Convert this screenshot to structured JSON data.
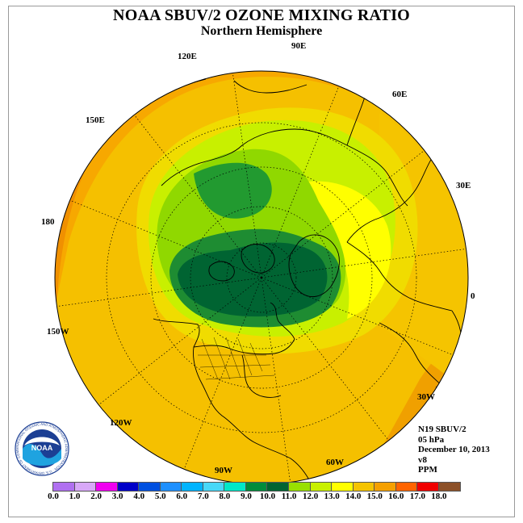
{
  "header": {
    "title": "NOAA SBUV/2 OZONE MIXING RATIO",
    "subtitle": "Northern Hemisphere"
  },
  "map": {
    "projection": "north polar stereographic",
    "longitude_labels": {
      "lon_90e": "90E",
      "lon_60e": "60E",
      "lon_30e": "30E",
      "lon_0": "0",
      "lon_30w": "30W",
      "lon_60w": "60W",
      "lon_90w": "90W",
      "lon_120w": "120W",
      "lon_150w": "150W",
      "lon_180": "180",
      "lon_150e": "150E",
      "lon_120e": "120E"
    },
    "colors": {
      "ocean_orange": "#f7a800",
      "dark_orange": "#f08c00",
      "gold": "#f5c400",
      "yellow": "#ffff00",
      "yellow_green": "#c8f000",
      "light_green": "#90dc00",
      "green": "#1e8c32",
      "dark_green": "#006432"
    }
  },
  "info": {
    "satellite": "N19 SBUV/2",
    "level": "05 hPa",
    "date": "December 10, 2013",
    "version": "v8",
    "units": "PPM"
  },
  "logo": {
    "text": "NOAA",
    "ring_text": "NATIONAL OCEANIC AND ATMOSPHERIC ADMINISTRATION · U.S. DEPARTMENT OF COMMERCE"
  },
  "colorbar": {
    "colors": [
      "#b070f0",
      "#d8a8f8",
      "#f000f0",
      "#0000c8",
      "#0050e0",
      "#1e90ff",
      "#00b4ff",
      "#48d8f8",
      "#00e8c8",
      "#008c3c",
      "#006432",
      "#98e000",
      "#c8f000",
      "#ffff00",
      "#f5c400",
      "#f5a000",
      "#ff6400",
      "#f00000",
      "#8c5028"
    ],
    "tick_labels": [
      "0.0",
      "1.0",
      "2.0",
      "3.0",
      "4.0",
      "5.0",
      "6.0",
      "7.0",
      "8.0",
      "9.0",
      "10.0",
      "11.0",
      "12.0",
      "13.0",
      "14.0",
      "15.0",
      "16.0",
      "17.0",
      "18.0"
    ]
  }
}
